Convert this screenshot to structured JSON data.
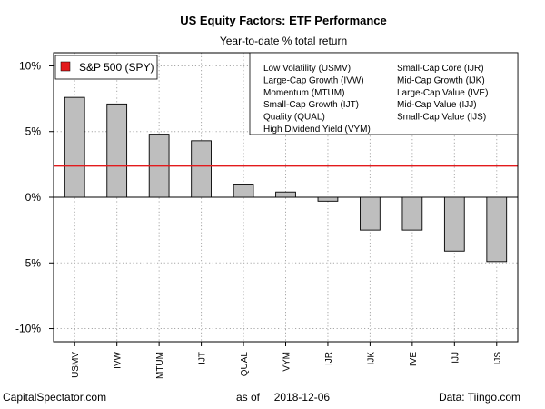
{
  "chart_data": {
    "type": "bar",
    "title": "US Equity Factors: ETF Performance",
    "subtitle": "Year-to-date % total return",
    "categories": [
      "USMV",
      "IVW",
      "MTUM",
      "IJT",
      "QUAL",
      "VYM",
      "IJR",
      "IJK",
      "IVE",
      "IJJ",
      "IJS"
    ],
    "values": [
      7.6,
      7.1,
      4.8,
      4.3,
      1.0,
      0.4,
      -0.3,
      -2.5,
      -2.5,
      -4.1,
      -4.9
    ],
    "ylim": [
      -11,
      11
    ],
    "yticks": [
      10,
      5,
      0,
      -5,
      -10
    ],
    "ytick_labels": [
      "10%",
      "5%",
      "0%",
      "-5%",
      "-10%"
    ],
    "xlabel": "",
    "ylabel": "",
    "grid": true,
    "bar_color": "#bebebe",
    "reference_line": {
      "label": "S&P 500 (SPY)",
      "value": 2.4,
      "color": "#e31a1c"
    },
    "legend_position": "top-right",
    "legend_entries": [
      "Low Volatility (USMV)",
      "Large-Cap Growth (IVW)",
      "Momentum (MTUM)",
      "Small-Cap Growth (IJT)",
      "Quality (QUAL)",
      "High Dividend Yield (VYM)",
      "Small-Cap Core (IJR)",
      "Mid-Cap Growth (IJK)",
      "Large-Cap Value (IVE)",
      "Mid-Cap Value (IJJ)",
      "Small-Cap Value (IJS)"
    ]
  },
  "footer": {
    "source_left": "CapitalSpectator.com",
    "as_of_label": "as of",
    "as_of_date": "2018-12-06",
    "data_credit": "Data: Tiingo.com"
  }
}
